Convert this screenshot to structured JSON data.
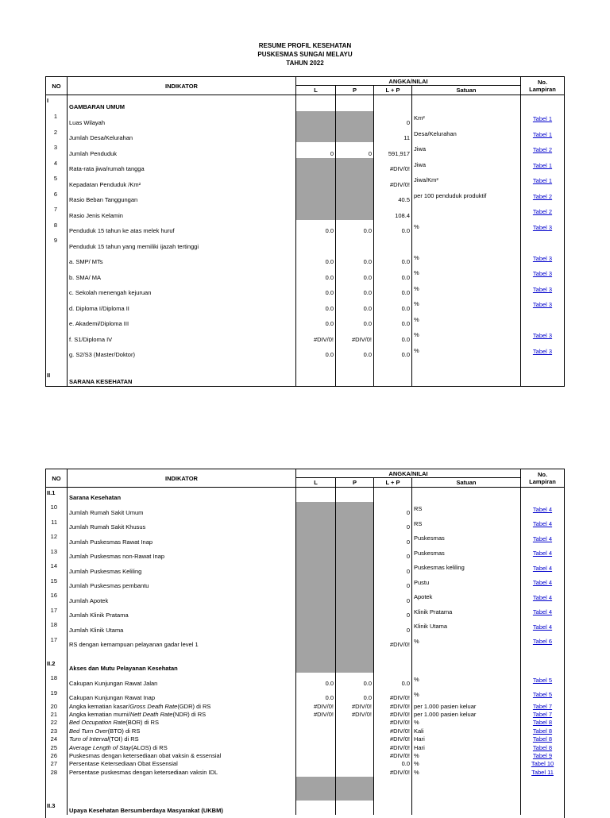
{
  "page": {
    "title_lines": [
      "RESUME PROFIL KESEHATAN",
      "PUSKESMAS SUNGAI MELAYU",
      "TAHUN 2022"
    ]
  },
  "table_header": {
    "no": "NO",
    "indikator": "INDIKATOR",
    "angka_nilai": "ANGKA/NILAI",
    "l": "L",
    "p": "P",
    "lp": "L + P",
    "satuan": "Satuan",
    "lampiran_no": "No.",
    "lampiran_word": "Lampiran"
  },
  "colors": {
    "shaded_cell": "#a3a3a3",
    "link_blue": "#0000cc"
  },
  "section1": {
    "rows": [
      {
        "type": "section",
        "no": "I",
        "label": "GAMBARAN UMUM"
      },
      {
        "type": "item",
        "no": "1",
        "label": "Luas Wilayah",
        "lp": "0",
        "satuan": "Km²",
        "lampiran": "Tabel 1",
        "gray": true
      },
      {
        "type": "item",
        "no": "2",
        "label": "Jumlah Desa/Kelurahan",
        "lp": "11",
        "satuan": "Desa/Kelurahan",
        "lampiran": "Tabel 1",
        "gray": true
      },
      {
        "type": "item",
        "no": "3",
        "label": "Jumlah Penduduk",
        "l": "0",
        "p": "0",
        "lp": "591,917",
        "satuan": "Jiwa",
        "lampiran": "Tabel 2"
      },
      {
        "type": "item",
        "no": "4",
        "label": "Rata-rata jiwa/rumah tangga",
        "lp": "#DIV/0!",
        "satuan": "Jiwa",
        "lampiran": "Tabel 1",
        "gray": true
      },
      {
        "type": "item",
        "no": "5",
        "label": "Kepadatan Penduduk /Km²",
        "lp": "#DIV/0!",
        "satuan": "Jiwa/Km²",
        "lampiran": "Tabel 1",
        "gray": true
      },
      {
        "type": "item",
        "no": "6",
        "label": "Rasio Beban Tanggungan",
        "lp": "40.5",
        "satuan": "per 100 penduduk produktif",
        "lampiran": "Tabel 2",
        "gray": true
      },
      {
        "type": "item",
        "no": "7",
        "label": "Rasio Jenis Kelamin",
        "lp": "108.4",
        "satuan": "",
        "lampiran": "Tabel 2",
        "gray": true
      },
      {
        "type": "item",
        "no": "8",
        "label": "Penduduk 15 tahun ke atas melek huruf",
        "l": "0.0",
        "p": "0.0",
        "lp": "0.0",
        "satuan": "%",
        "lampiran": "Tabel 3"
      },
      {
        "type": "item",
        "no": "9",
        "label": "Penduduk 15 tahun yang memiliki ijazah tertinggi"
      },
      {
        "type": "item",
        "label": "a. SMP/ MTs",
        "l": "0.0",
        "p": "0.0",
        "lp": "0.0",
        "satuan": "%",
        "lampiran": "Tabel 3"
      },
      {
        "type": "item",
        "label": "b. SMA/ MA",
        "l": "0.0",
        "p": "0.0",
        "lp": "0.0",
        "satuan": "%",
        "lampiran": "Tabel 3"
      },
      {
        "type": "item",
        "label": "c. Sekolah menengah kejuruan",
        "l": "0.0",
        "p": "0.0",
        "lp": "0.0",
        "satuan": "%",
        "lampiran": "Tabel 3"
      },
      {
        "type": "item",
        "label": "d. Diploma I/Diploma II",
        "l": "0.0",
        "p": "0.0",
        "lp": "0.0",
        "satuan": "%",
        "lampiran": "Tabel 3"
      },
      {
        "type": "item",
        "label": "e. Akademi/Diploma III",
        "l": "0.0",
        "p": "0.0",
        "lp": "0.0",
        "satuan": "%",
        "lampiran": ""
      },
      {
        "type": "item",
        "label": "f. S1/Diploma IV",
        "l": "#DIV/0!",
        "p": "#DIV/0!",
        "lp": "0.0",
        "satuan": "%",
        "lampiran": "Tabel 3"
      },
      {
        "type": "item",
        "label": "g. S2/S3 (Master/Doktor)",
        "l": "0.0",
        "p": "0.0",
        "lp": "0.0",
        "satuan": "%",
        "lampiran": "Tabel 3"
      },
      {
        "type": "blank",
        "h": 14
      },
      {
        "type": "section",
        "no": "II",
        "label": "SARANA KESEHATAN"
      }
    ]
  },
  "section2": {
    "rows": [
      {
        "type": "section",
        "no": "II.1",
        "label": "Sarana Kesehatan"
      },
      {
        "type": "item",
        "no": "10",
        "label": "Jumlah Rumah Sakit Umum",
        "lp": "0",
        "satuan": "RS",
        "lampiran": "Tabel 4",
        "gray": true
      },
      {
        "type": "item",
        "no": "11",
        "label": "Jumlah Rumah Sakit Khusus",
        "lp": "0",
        "satuan": "RS",
        "lampiran": "Tabel 4",
        "gray": true
      },
      {
        "type": "item",
        "no": "12",
        "label": "Jumlah Puskesmas Rawat Inap",
        "lp": "0",
        "satuan": "Puskesmas",
        "lampiran": "Tabel 4",
        "gray": true
      },
      {
        "type": "item",
        "no": "13",
        "label": "Jumlah Puskesmas non-Rawat Inap",
        "lp": "0",
        "satuan": "Puskesmas",
        "lampiran": "Tabel 4",
        "gray": true
      },
      {
        "type": "item",
        "no": "14",
        "label": "Jumlah Puskesmas Keliling",
        "lp": "0",
        "satuan": "Puskesmas keliling",
        "lampiran": "Tabel 4",
        "gray": true
      },
      {
        "type": "item",
        "no": "15",
        "label": "Jumlah Puskesmas pembantu",
        "lp": "0",
        "satuan": "Pustu",
        "lampiran": "Tabel 4",
        "gray": true
      },
      {
        "type": "item",
        "no": "16",
        "label": "Jumlah Apotek",
        "lp": "0",
        "satuan": "Apotek",
        "lampiran": "Tabel 4",
        "gray": true
      },
      {
        "type": "item",
        "no": "17",
        "label": "Jumlah Klinik Pratama",
        "lp": "0",
        "satuan": "Klinik Pratama",
        "lampiran": "Tabel 4",
        "gray": true
      },
      {
        "type": "item",
        "no": "18",
        "label": "Jumlah Klinik Utama",
        "lp": "0",
        "satuan": "Klinik Utama",
        "lampiran": "Tabel 4",
        "gray": true
      },
      {
        "type": "item",
        "no": "17",
        "label": "RS dengan kemampuan pelayanan gadar level 1",
        "lp": "#DIV/0!",
        "satuan": "%",
        "lampiran": "Tabel 6",
        "gray": true
      },
      {
        "type": "blank",
        "h": 12,
        "gray": true
      },
      {
        "type": "section",
        "no": "II.2",
        "label": "Akses dan Mutu Pelayanan Kesehatan",
        "gray": true
      },
      {
        "type": "item",
        "no": "18",
        "label": "Cakupan Kunjungan Rawat Jalan",
        "l": "0.0",
        "p": "0.0",
        "lp": "0.0",
        "satuan": "%",
        "lampiran": "Tabel 5"
      },
      {
        "type": "item",
        "no": "19",
        "label": "Cakupan Kunjungan Rawat Inap",
        "l": "0.0",
        "p": "0.0",
        "lp": "#DIV/0!",
        "satuan": "%",
        "lampiran": "Tabel 5"
      },
      {
        "type": "compact",
        "no": "20",
        "label": "Angka kematian kasar/",
        "label_italic": "Gross Death Rate",
        "label_after": " (GDR) di RS",
        "l": "#DIV/0!",
        "p": "#DIV/0!",
        "lp": "#DIV/0!",
        "satuan": "per 1.000 pasien keluar",
        "lampiran": "Tabel 7"
      },
      {
        "type": "compact",
        "no": "21",
        "label": "Angka kematian murni/",
        "label_italic": "Nett Death Rate",
        "label_after": " (NDR) di RS",
        "l": "#DIV/0!",
        "p": "#DIV/0!",
        "lp": "#DIV/0!",
        "satuan": "per 1.000 pasien keluar",
        "lampiran": "Tabel 7"
      },
      {
        "type": "compact",
        "no": "22",
        "label_italic": "Bed Occupation Rate",
        "label_after": " (BOR) di RS",
        "lp": "#DIV/0!",
        "satuan": "%",
        "lampiran": "Tabel 8"
      },
      {
        "type": "compact",
        "no": "23",
        "label_italic": "Bed Turn Over",
        "label_after": " (BTO) di RS",
        "lp": "#DIV/0!",
        "satuan": "Kali",
        "lampiran": "Tabel 8"
      },
      {
        "type": "compact",
        "no": "24",
        "label_italic": "Turn of Interval",
        "label_after": " (TOI) di RS",
        "lp": "#DIV/0!",
        "satuan": "Hari",
        "lampiran": "Tabel 8"
      },
      {
        "type": "compact",
        "no": "25",
        "label_italic": "Average Length of Stay",
        "label_after": " (ALOS) di RS",
        "lp": "#DIV/0!",
        "satuan": "Hari",
        "lampiran": "Tabel 8"
      },
      {
        "type": "compact",
        "no": "26",
        "label": "Puskesmas dengan ketersediaan obat vaksin & essensial",
        "lp": "#DIV/0!",
        "satuan": "%",
        "lampiran": "Tabel 9"
      },
      {
        "type": "compact",
        "no": "27",
        "label": "Persentase Ketersediaan Obat Essensial",
        "lp": "0.0",
        "satuan": "%",
        "lampiran": "Tabel 10"
      },
      {
        "type": "compact",
        "no": "28",
        "label": "Persentase puskesmas dengan ketersediaan vaksin IDL",
        "lp": "#DIV/0!",
        "satuan": "%",
        "lampiran": "Tabel 11"
      },
      {
        "type": "blank",
        "h": 30,
        "gray": true
      },
      {
        "type": "section",
        "no": "II.3",
        "label": "Upaya Kesehatan Bersumberdaya Masyarakat (UKBM)"
      }
    ]
  }
}
